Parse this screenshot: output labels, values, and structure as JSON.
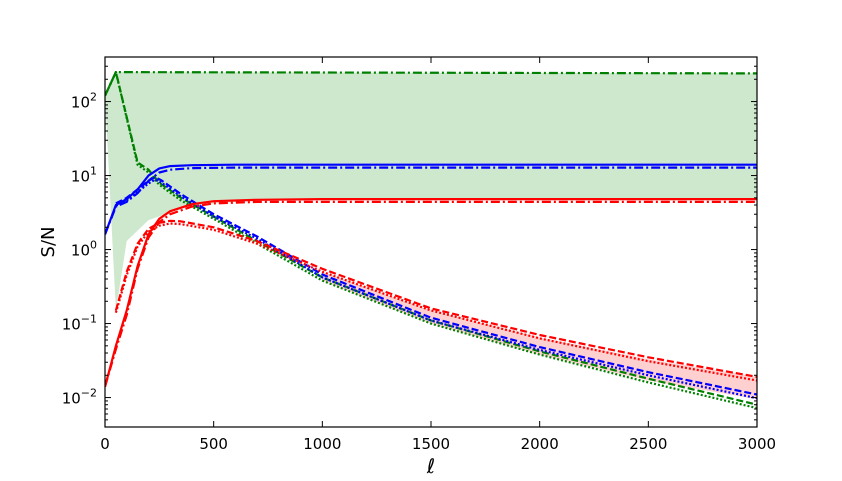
{
  "chart_data": {
    "type": "line",
    "title": "",
    "xlabel": "ℓ",
    "ylabel": "S/N",
    "xscale": "linear",
    "yscale": "log",
    "xlim": [
      0,
      3000
    ],
    "ylim": [
      0.004,
      400
    ],
    "xticks": [
      0,
      500,
      1000,
      1500,
      2000,
      2500,
      3000
    ],
    "xtick_labels": [
      "0",
      "500",
      "1000",
      "1500",
      "2000",
      "2500",
      "3000"
    ],
    "yticks": [
      0.01,
      0.1,
      1,
      10,
      100
    ],
    "ytick_labels": [
      {
        "base": "10",
        "exp": "−2"
      },
      {
        "base": "10",
        "exp": "−1"
      },
      {
        "base": "10",
        "exp": "0"
      },
      {
        "base": "10",
        "exp": "1"
      },
      {
        "base": "10",
        "exp": "2"
      }
    ],
    "colors": {
      "green": "#008000",
      "blue": "#0000ff",
      "red": "#ff0000",
      "green_fill": "#c6e4c6",
      "red_fill": "#ffc8c8",
      "overlap_fill": "#d2b4a0"
    },
    "bands": [
      {
        "name": "green-band",
        "color": "#008000",
        "fill": "#c6e4c6",
        "upper": [
          [
            0,
            120
          ],
          [
            50,
            250
          ],
          [
            3000,
            240
          ]
        ],
        "lower": [
          [
            50,
            0.15
          ],
          [
            100,
            1.3
          ],
          [
            200,
            2.5
          ],
          [
            400,
            4.0
          ],
          [
            700,
            4.6
          ],
          [
            1000,
            4.8
          ],
          [
            3000,
            4.8
          ]
        ]
      },
      {
        "name": "red-band",
        "color": "#ff0000",
        "fill": "#ffc8c8",
        "upper": [
          [
            1000,
            0.5
          ],
          [
            1500,
            0.15
          ],
          [
            2000,
            0.065
          ],
          [
            2500,
            0.033
          ],
          [
            3000,
            0.019
          ]
        ],
        "lower": [
          [
            1000,
            0.38
          ],
          [
            1500,
            0.1
          ],
          [
            2000,
            0.038
          ],
          [
            2500,
            0.017
          ],
          [
            3000,
            0.0095
          ]
        ]
      }
    ],
    "series": [
      {
        "name": "green-dashdot",
        "color": "#008000",
        "style": "dashdot",
        "points": [
          [
            0,
            120
          ],
          [
            50,
            250
          ],
          [
            3000,
            240
          ]
        ]
      },
      {
        "name": "green-dashed",
        "color": "#008000",
        "style": "dashed",
        "points": [
          [
            0,
            120
          ],
          [
            50,
            250
          ],
          [
            150,
            15
          ],
          [
            200,
            12
          ],
          [
            250,
            8
          ],
          [
            350,
            5
          ],
          [
            500,
            2.8
          ],
          [
            700,
            1.3
          ],
          [
            1000,
            0.42
          ],
          [
            1500,
            0.11
          ],
          [
            2000,
            0.042
          ],
          [
            2500,
            0.018
          ],
          [
            3000,
            0.008
          ]
        ]
      },
      {
        "name": "green-dotted",
        "color": "#008000",
        "style": "dotted",
        "points": [
          [
            0,
            120
          ],
          [
            50,
            250
          ],
          [
            150,
            14
          ],
          [
            200,
            11
          ],
          [
            250,
            7.5
          ],
          [
            350,
            4.6
          ],
          [
            500,
            2.6
          ],
          [
            700,
            1.2
          ],
          [
            1000,
            0.38
          ],
          [
            1500,
            0.1
          ],
          [
            2000,
            0.038
          ],
          [
            2500,
            0.016
          ],
          [
            3000,
            0.0072
          ]
        ]
      },
      {
        "name": "blue-solid",
        "color": "#0000ff",
        "style": "solid",
        "points": [
          [
            0,
            1.6
          ],
          [
            50,
            4.0
          ],
          [
            100,
            4.8
          ],
          [
            150,
            6.5
          ],
          [
            200,
            10
          ],
          [
            250,
            12.5
          ],
          [
            300,
            13.4
          ],
          [
            400,
            13.8
          ],
          [
            600,
            14
          ],
          [
            3000,
            14
          ]
        ]
      },
      {
        "name": "blue-dashdot",
        "color": "#0000ff",
        "style": "dashdot",
        "points": [
          [
            0,
            1.6
          ],
          [
            50,
            3.8
          ],
          [
            100,
            4.4
          ],
          [
            150,
            5.8
          ],
          [
            200,
            8.5
          ],
          [
            250,
            11
          ],
          [
            300,
            12
          ],
          [
            400,
            12.6
          ],
          [
            600,
            12.8
          ],
          [
            3000,
            12.8
          ]
        ]
      },
      {
        "name": "blue-dashed",
        "color": "#0000ff",
        "style": "dashed",
        "points": [
          [
            50,
            4.2
          ],
          [
            100,
            5
          ],
          [
            150,
            6.5
          ],
          [
            200,
            8.5
          ],
          [
            230,
            9.5
          ],
          [
            260,
            8.6
          ],
          [
            350,
            5.6
          ],
          [
            500,
            3.0
          ],
          [
            700,
            1.5
          ],
          [
            1000,
            0.46
          ],
          [
            1500,
            0.12
          ],
          [
            2000,
            0.048
          ],
          [
            2500,
            0.022
          ],
          [
            3000,
            0.011
          ]
        ]
      },
      {
        "name": "blue-dotted",
        "color": "#0000ff",
        "style": "dotted",
        "points": [
          [
            50,
            3.9
          ],
          [
            100,
            4.6
          ],
          [
            150,
            6
          ],
          [
            200,
            7.8
          ],
          [
            230,
            8.8
          ],
          [
            260,
            8
          ],
          [
            350,
            5.2
          ],
          [
            500,
            2.8
          ],
          [
            700,
            1.4
          ],
          [
            1000,
            0.42
          ],
          [
            1500,
            0.11
          ],
          [
            2000,
            0.044
          ],
          [
            2500,
            0.02
          ],
          [
            3000,
            0.0098
          ]
        ]
      },
      {
        "name": "red-solid",
        "color": "#ff0000",
        "style": "solid",
        "points": [
          [
            0,
            0.014
          ],
          [
            50,
            0.05
          ],
          [
            100,
            0.15
          ],
          [
            150,
            0.6
          ],
          [
            200,
            1.6
          ],
          [
            250,
            2.6
          ],
          [
            300,
            3.3
          ],
          [
            400,
            4.1
          ],
          [
            500,
            4.5
          ],
          [
            700,
            4.7
          ],
          [
            1000,
            4.8
          ],
          [
            3000,
            4.8
          ]
        ]
      },
      {
        "name": "red-dashdot",
        "color": "#ff0000",
        "style": "dashdot",
        "points": [
          [
            0,
            0.014
          ],
          [
            50,
            0.045
          ],
          [
            100,
            0.13
          ],
          [
            150,
            0.55
          ],
          [
            200,
            1.45
          ],
          [
            250,
            2.35
          ],
          [
            300,
            3.0
          ],
          [
            400,
            3.8
          ],
          [
            500,
            4.2
          ],
          [
            700,
            4.4
          ],
          [
            1000,
            4.4
          ],
          [
            3000,
            4.4
          ]
        ]
      },
      {
        "name": "red-dashed",
        "color": "#ff0000",
        "style": "dashed",
        "points": [
          [
            50,
            0.15
          ],
          [
            100,
            0.5
          ],
          [
            150,
            1.2
          ],
          [
            200,
            1.9
          ],
          [
            250,
            2.3
          ],
          [
            300,
            2.45
          ],
          [
            350,
            2.4
          ],
          [
            500,
            2.0
          ],
          [
            700,
            1.3
          ],
          [
            1000,
            0.55
          ],
          [
            1500,
            0.16
          ],
          [
            2000,
            0.07
          ],
          [
            2500,
            0.035
          ],
          [
            3000,
            0.019
          ]
        ]
      },
      {
        "name": "red-dotted",
        "color": "#ff0000",
        "style": "dotted",
        "points": [
          [
            50,
            0.14
          ],
          [
            100,
            0.45
          ],
          [
            150,
            1.1
          ],
          [
            200,
            1.75
          ],
          [
            250,
            2.1
          ],
          [
            300,
            2.25
          ],
          [
            350,
            2.2
          ],
          [
            500,
            1.85
          ],
          [
            700,
            1.2
          ],
          [
            1000,
            0.5
          ],
          [
            1500,
            0.15
          ],
          [
            2000,
            0.063
          ],
          [
            2500,
            0.031
          ],
          [
            3000,
            0.017
          ]
        ]
      }
    ]
  }
}
